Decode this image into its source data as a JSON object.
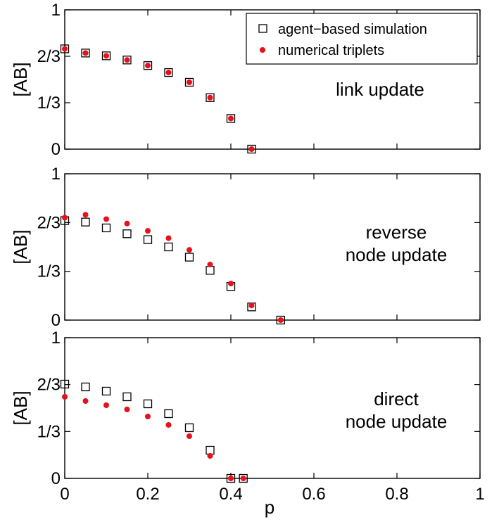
{
  "chart_data": [
    {
      "type": "scatter",
      "ylabel": "[AB]",
      "annotation": [
        "link update"
      ],
      "xlim": [
        0,
        1
      ],
      "ylim": [
        0,
        1
      ],
      "yticks": [
        {
          "value": 0,
          "label": "0"
        },
        {
          "value": 0.3333,
          "label": "1/3"
        },
        {
          "value": 0.6667,
          "label": "2/3"
        },
        {
          "value": 1,
          "label": "1"
        }
      ],
      "legend": {
        "position": "top-right",
        "entries": [
          "agent−based simulation",
          "numerical triplets"
        ]
      },
      "series": [
        {
          "name": "agent−based simulation",
          "marker": "square",
          "x": [
            0,
            0.05,
            0.1,
            0.15,
            0.2,
            0.25,
            0.3,
            0.35,
            0.4,
            0.45
          ],
          "y": [
            0.72,
            0.69,
            0.67,
            0.64,
            0.6,
            0.55,
            0.48,
            0.37,
            0.22,
            0
          ]
        },
        {
          "name": "numerical triplets",
          "marker": "dot",
          "x": [
            0,
            0.05,
            0.1,
            0.15,
            0.2,
            0.25,
            0.3,
            0.35,
            0.4,
            0.45
          ],
          "y": [
            0.72,
            0.69,
            0.67,
            0.64,
            0.6,
            0.55,
            0.48,
            0.37,
            0.22,
            0
          ]
        }
      ]
    },
    {
      "type": "scatter",
      "ylabel": "[AB]",
      "annotation": [
        "reverse",
        "node update"
      ],
      "xlim": [
        0,
        1
      ],
      "ylim": [
        0,
        1
      ],
      "yticks": [
        {
          "value": 0,
          "label": "0"
        },
        {
          "value": 0.3333,
          "label": "1/3"
        },
        {
          "value": 0.6667,
          "label": "2/3"
        },
        {
          "value": 1,
          "label": "1"
        }
      ],
      "series": [
        {
          "name": "agent−based simulation",
          "marker": "square",
          "x": [
            0,
            0.05,
            0.1,
            0.15,
            0.2,
            0.25,
            0.3,
            0.35,
            0.4,
            0.45,
            0.52
          ],
          "y": [
            0.68,
            0.67,
            0.63,
            0.59,
            0.55,
            0.5,
            0.43,
            0.34,
            0.23,
            0.09,
            0
          ]
        },
        {
          "name": "numerical triplets",
          "marker": "dot",
          "x": [
            0,
            0.05,
            0.1,
            0.15,
            0.2,
            0.25,
            0.3,
            0.35,
            0.4,
            0.45,
            0.52
          ],
          "y": [
            0.7,
            0.72,
            0.69,
            0.66,
            0.61,
            0.56,
            0.48,
            0.38,
            0.25,
            0.1,
            0
          ]
        }
      ]
    },
    {
      "type": "scatter",
      "ylabel": "[AB]",
      "xlabel": "p",
      "annotation": [
        "direct",
        "node update"
      ],
      "xlim": [
        0,
        1
      ],
      "ylim": [
        0,
        1
      ],
      "yticks": [
        {
          "value": 0,
          "label": "0"
        },
        {
          "value": 0.3333,
          "label": "1/3"
        },
        {
          "value": 0.6667,
          "label": "2/3"
        },
        {
          "value": 1,
          "label": "1"
        }
      ],
      "xticks": [
        {
          "value": 0,
          "label": "0"
        },
        {
          "value": 0.2,
          "label": "0.2"
        },
        {
          "value": 0.4,
          "label": "0.4"
        },
        {
          "value": 0.6,
          "label": "0.6"
        },
        {
          "value": 0.8,
          "label": "0.8"
        },
        {
          "value": 1,
          "label": "1"
        }
      ],
      "series": [
        {
          "name": "agent−based simulation",
          "marker": "square",
          "x": [
            0,
            0.05,
            0.1,
            0.15,
            0.2,
            0.25,
            0.3,
            0.35,
            0.4,
            0.43
          ],
          "y": [
            0.67,
            0.65,
            0.62,
            0.58,
            0.53,
            0.46,
            0.36,
            0.2,
            0,
            0
          ]
        },
        {
          "name": "numerical triplets",
          "marker": "dot",
          "x": [
            0,
            0.05,
            0.1,
            0.15,
            0.2,
            0.25,
            0.3,
            0.35,
            0.4,
            0.43
          ],
          "y": [
            0.58,
            0.55,
            0.52,
            0.49,
            0.44,
            0.38,
            0.3,
            0.16,
            0,
            0
          ]
        }
      ]
    }
  ],
  "colors": {
    "dot": "#e8101a",
    "square_stroke": "#000000",
    "axis": "#000000",
    "background": "#ffffff"
  }
}
